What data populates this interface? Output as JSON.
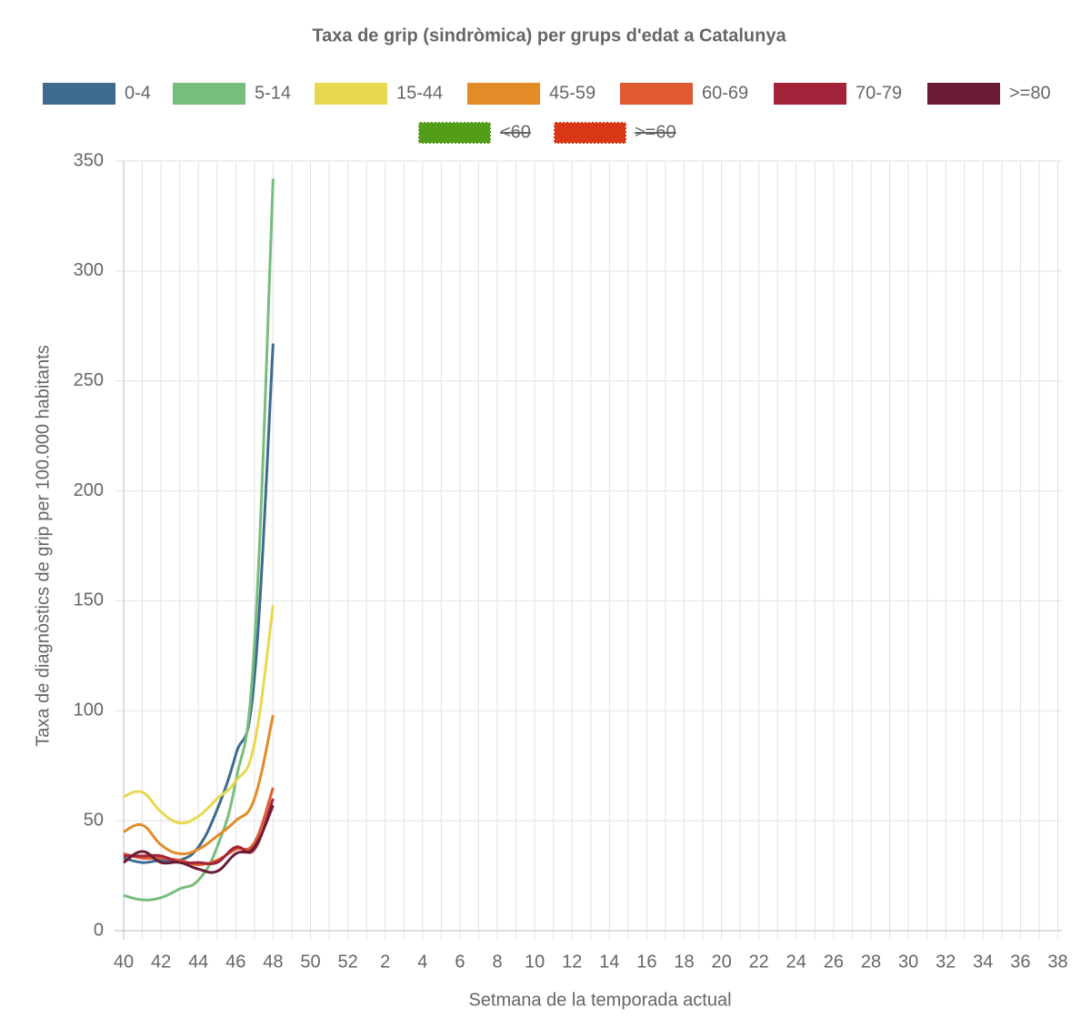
{
  "chart_data": {
    "type": "line",
    "title": "Taxa de grip (sindròmica) per grups d'edat a Catalunya",
    "x_label": "Setmana de la temporada actual",
    "y_label": "Taxa de diagnòstics de grip per 100.000 habitants",
    "categories": [
      "40",
      null,
      "42",
      null,
      "44",
      null,
      "46",
      null,
      "48",
      null,
      "50",
      null,
      "52",
      null,
      "2",
      null,
      "4",
      null,
      "6",
      null,
      "8",
      null,
      "10",
      null,
      "12",
      null,
      "14",
      null,
      "16",
      null,
      "18",
      null,
      "20",
      null,
      "22",
      null,
      "24",
      null,
      "26",
      null,
      "28",
      null,
      "30",
      null,
      "32",
      null,
      "34",
      null,
      "36",
      null,
      "38"
    ],
    "ylim": [
      0,
      350
    ],
    "yticks": [
      0,
      50,
      100,
      150,
      200,
      250,
      300,
      350
    ],
    "grid": true,
    "series": [
      {
        "name": "0-4",
        "color": "#3e6a8f",
        "values": [
          33,
          31,
          32,
          32,
          38,
          55,
          80,
          115,
          267,
          null,
          null,
          null,
          null,
          null,
          null,
          null,
          null,
          null,
          null,
          null,
          null,
          null,
          null,
          null,
          null,
          null,
          null,
          null,
          null,
          null,
          null,
          null,
          null,
          null,
          null,
          null,
          null,
          null,
          null,
          null,
          null,
          null,
          null,
          null,
          null,
          null,
          null,
          null,
          null,
          null,
          null
        ]
      },
      {
        "name": "5-14",
        "color": "#77bd7c",
        "values": [
          16,
          14,
          15,
          19,
          23,
          38,
          68,
          130,
          342,
          null,
          null,
          null,
          null,
          null,
          null,
          null,
          null,
          null,
          null,
          null,
          null,
          null,
          null,
          null,
          null,
          null,
          null,
          null,
          null,
          null,
          null,
          null,
          null,
          null,
          null,
          null,
          null,
          null,
          null,
          null,
          null,
          null,
          null,
          null,
          null,
          null,
          null,
          null,
          null,
          null,
          null
        ]
      },
      {
        "name": "15-44",
        "color": "#e8d84f",
        "values": [
          61,
          63,
          54,
          49,
          52,
          60,
          68,
          85,
          148,
          null,
          null,
          null,
          null,
          null,
          null,
          null,
          null,
          null,
          null,
          null,
          null,
          null,
          null,
          null,
          null,
          null,
          null,
          null,
          null,
          null,
          null,
          null,
          null,
          null,
          null,
          null,
          null,
          null,
          null,
          null,
          null,
          null,
          null,
          null,
          null,
          null,
          null,
          null,
          null,
          null,
          null
        ]
      },
      {
        "name": "45-59",
        "color": "#e38b27",
        "values": [
          45,
          48,
          39,
          35,
          37,
          43,
          50,
          60,
          98,
          null,
          null,
          null,
          null,
          null,
          null,
          null,
          null,
          null,
          null,
          null,
          null,
          null,
          null,
          null,
          null,
          null,
          null,
          null,
          null,
          null,
          null,
          null,
          null,
          null,
          null,
          null,
          null,
          null,
          null,
          null,
          null,
          null,
          null,
          null,
          null,
          null,
          null,
          null,
          null,
          null,
          null
        ]
      },
      {
        "name": "60-69",
        "color": "#df5a30",
        "values": [
          35,
          33,
          33,
          32,
          30,
          32,
          37,
          40,
          65,
          null,
          null,
          null,
          null,
          null,
          null,
          null,
          null,
          null,
          null,
          null,
          null,
          null,
          null,
          null,
          null,
          null,
          null,
          null,
          null,
          null,
          null,
          null,
          null,
          null,
          null,
          null,
          null,
          null,
          null,
          null,
          null,
          null,
          null,
          null,
          null,
          null,
          null,
          null,
          null,
          null,
          null
        ]
      },
      {
        "name": "70-79",
        "color": "#a3233a",
        "values": [
          34,
          34,
          34,
          31,
          31,
          31,
          38,
          37,
          60,
          null,
          null,
          null,
          null,
          null,
          null,
          null,
          null,
          null,
          null,
          null,
          null,
          null,
          null,
          null,
          null,
          null,
          null,
          null,
          null,
          null,
          null,
          null,
          null,
          null,
          null,
          null,
          null,
          null,
          null,
          null,
          null,
          null,
          null,
          null,
          null,
          null,
          null,
          null,
          null,
          null,
          null
        ]
      },
      {
        "name": ">=80",
        "color": "#6b1b36",
        "values": [
          31,
          36,
          31,
          31,
          28,
          27,
          35,
          38,
          57,
          null,
          null,
          null,
          null,
          null,
          null,
          null,
          null,
          null,
          null,
          null,
          null,
          null,
          null,
          null,
          null,
          null,
          null,
          null,
          null,
          null,
          null,
          null,
          null,
          null,
          null,
          null,
          null,
          null,
          null,
          null,
          null,
          null,
          null,
          null,
          null,
          null,
          null,
          null,
          null,
          null,
          null
        ]
      },
      {
        "name": "<60",
        "color": "#529e18",
        "hidden": true
      },
      {
        "name": ">=60",
        "color": "#d93716",
        "hidden": true
      }
    ]
  }
}
